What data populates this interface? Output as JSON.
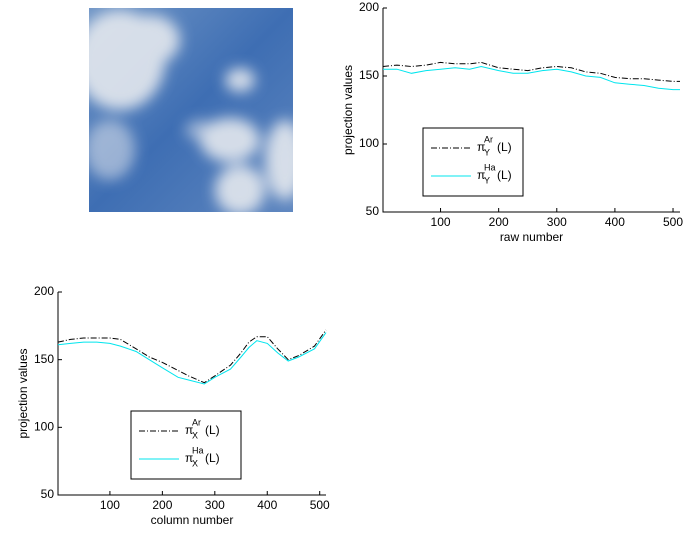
{
  "chart_data": [
    {
      "type": "line",
      "xlabel": "raw number",
      "ylabel": "projection values",
      "xlim": [
        1,
        512
      ],
      "ylim": [
        50,
        200
      ],
      "xticks": [
        100,
        200,
        300,
        400,
        500
      ],
      "yticks": [
        50,
        100,
        150,
        200
      ],
      "legend": "lower left",
      "x": [
        1,
        25,
        50,
        75,
        100,
        125,
        150,
        170,
        200,
        225,
        250,
        275,
        300,
        325,
        350,
        375,
        400,
        425,
        450,
        475,
        500,
        512
      ],
      "series": [
        {
          "label": {
            "symbol": "π",
            "sub": "Y",
            "sup": "Ar",
            "arg": "(L)"
          },
          "color": "#000000",
          "dash": "dashdot",
          "values": [
            157,
            158,
            157,
            158,
            160,
            159,
            159,
            160,
            156,
            155,
            154,
            156,
            157,
            156,
            153,
            152,
            149,
            148,
            148,
            147,
            146,
            146
          ]
        },
        {
          "label": {
            "symbol": "π",
            "sub": "Y",
            "sup": "Ha",
            "arg": "(L)"
          },
          "color": "#00e5ee",
          "dash": "solid",
          "values": [
            155,
            155,
            152,
            154,
            155,
            156,
            155,
            157,
            154,
            152,
            152,
            154,
            155,
            153,
            150,
            149,
            145,
            144,
            143,
            141,
            140,
            140
          ]
        }
      ]
    },
    {
      "type": "line",
      "xlabel": "column number",
      "ylabel": "projection values",
      "xlim": [
        1,
        512
      ],
      "ylim": [
        50,
        200
      ],
      "xticks": [
        100,
        200,
        300,
        400,
        500
      ],
      "yticks": [
        50,
        100,
        150,
        200
      ],
      "legend": "lower left",
      "x": [
        1,
        25,
        50,
        75,
        100,
        120,
        150,
        175,
        200,
        230,
        250,
        280,
        300,
        330,
        350,
        365,
        380,
        400,
        420,
        440,
        460,
        490,
        512
      ],
      "series": [
        {
          "label": {
            "symbol": "π",
            "sub": "X",
            "sup": "Ar",
            "arg": "(L)"
          },
          "color": "#000000",
          "dash": "dashdot",
          "values": [
            163,
            165,
            166,
            166,
            166,
            165,
            158,
            152,
            148,
            142,
            138,
            133,
            138,
            146,
            155,
            163,
            167,
            167,
            158,
            150,
            153,
            160,
            172
          ]
        },
        {
          "label": {
            "symbol": "π",
            "sub": "X",
            "sup": "Ha",
            "arg": "(L)"
          },
          "color": "#00e5ee",
          "dash": "solid",
          "values": [
            161,
            162,
            163,
            163,
            162,
            160,
            156,
            150,
            144,
            137,
            135,
            132,
            137,
            143,
            152,
            159,
            164,
            162,
            155,
            149,
            152,
            158,
            170
          ]
        }
      ]
    }
  ]
}
